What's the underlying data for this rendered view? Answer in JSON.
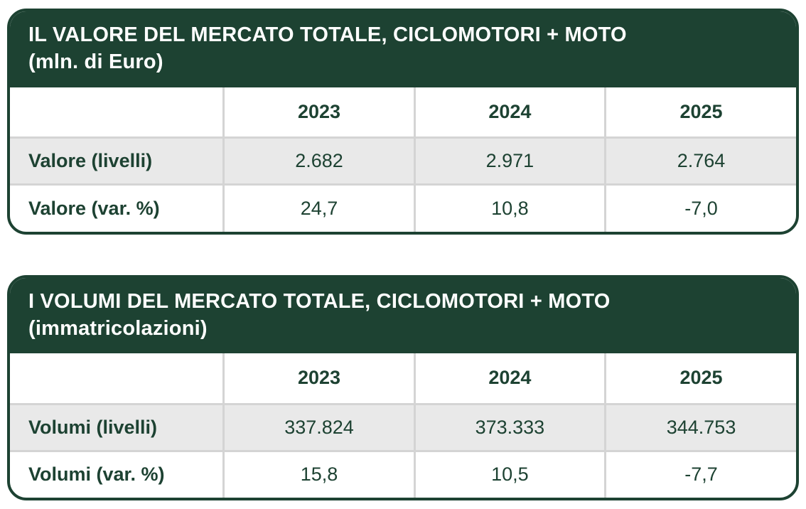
{
  "colors": {
    "header_green": "#1d4232",
    "alt_row_bg": "#e9e9e9",
    "divider_gray": "#d4d4d4",
    "title_text": "#ffffff"
  },
  "chart_data": [
    {
      "type": "table",
      "title": "IL VALORE DEL MERCATO TOTALE, CICLOMOTORI + MOTO",
      "subtitle": "(mln. di Euro)",
      "columns": [
        "2023",
        "2024",
        "2025"
      ],
      "rows": [
        {
          "label": "Valore (livelli)",
          "values": [
            "2.682",
            "2.971",
            "2.764"
          ]
        },
        {
          "label": "Valore (var. %)",
          "values": [
            "24,7",
            "10,8",
            "-7,0"
          ]
        }
      ]
    },
    {
      "type": "table",
      "title": "I VOLUMI DEL MERCATO TOTALE, CICLOMOTORI + MOTO",
      "subtitle": "(immatricolazioni)",
      "columns": [
        "2023",
        "2024",
        "2025"
      ],
      "rows": [
        {
          "label": "Volumi (livelli)",
          "values": [
            "337.824",
            "373.333",
            "344.753"
          ]
        },
        {
          "label": "Volumi (var. %)",
          "values": [
            "15,8",
            "10,5",
            "-7,7"
          ]
        }
      ]
    }
  ]
}
